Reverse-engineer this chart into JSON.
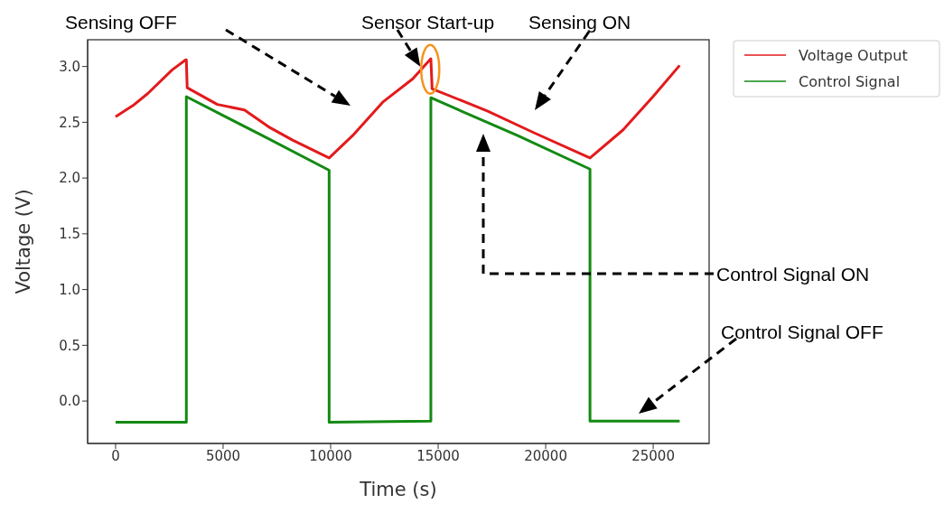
{
  "chart_data": {
    "type": "line",
    "xlabel": "Time (s)",
    "ylabel": "Voltage (V)",
    "xlim": [
      -1300,
      27600
    ],
    "ylim": [
      -0.38,
      3.24
    ],
    "xticks": [
      0,
      5000,
      10000,
      15000,
      20000,
      25000
    ],
    "yticks": [
      {
        "value": 0,
        "label": "0.0"
      },
      {
        "value": 0.5,
        "label": "0.5"
      },
      {
        "value": 1,
        "label": "1.0"
      },
      {
        "value": 1.5,
        "label": "1.5"
      },
      {
        "value": 2,
        "label": "2.0"
      },
      {
        "value": 2.5,
        "label": "2.5"
      },
      {
        "value": 3,
        "label": "3.0"
      }
    ],
    "grid": false,
    "legend": "top right",
    "marker": "none",
    "line_style": "solid",
    "series": [
      {
        "name": "Voltage Output",
        "color": "#e31a1c",
        "x": [
          0,
          810,
          1510,
          2630,
          3260,
          3290,
          3330,
          4730,
          5990,
          7110,
          8230,
          9930,
          11020,
          12420,
          13820,
          14660,
          14720,
          17310,
          19410,
          22060,
          23590,
          24990,
          26230
        ],
        "values": [
          2.55,
          2.65,
          2.76,
          2.97,
          3.06,
          3.06,
          2.81,
          2.66,
          2.61,
          2.46,
          2.34,
          2.18,
          2.38,
          2.68,
          2.89,
          3.07,
          2.8,
          2.6,
          2.41,
          2.18,
          2.43,
          2.73,
          3.01
        ]
      },
      {
        "name": "Control Signal",
        "color": "#138a13",
        "x": [
          0,
          3290,
          3290,
          6830,
          9930,
          9930,
          14660,
          14660,
          18700,
          22060,
          22060,
          26230
        ],
        "values": [
          -0.19,
          -0.19,
          2.73,
          2.38,
          2.07,
          -0.19,
          -0.18,
          2.72,
          2.38,
          2.08,
          -0.18,
          -0.18
        ]
      }
    ],
    "annotations": [
      "Sensing OFF",
      {
        "text": "Sensor Start-up",
        "x": 14170,
        "y": 3.0
      },
      "Sensing ON",
      "Control Signal ON",
      "Control Signal OFF"
    ]
  }
}
